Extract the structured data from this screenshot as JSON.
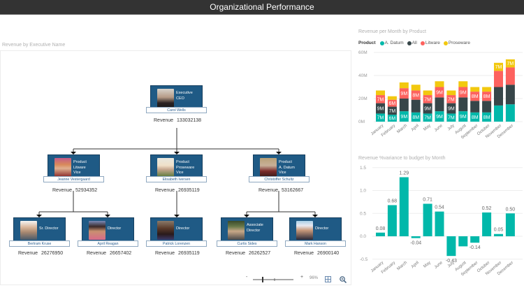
{
  "header": {
    "title": "Organizational Performance"
  },
  "org_chart": {
    "title": "Revenue by Executive Name",
    "revenue_label": "Revenue",
    "nodes": [
      {
        "id": "ceo",
        "role_lines": [
          "Executive",
          "CEO"
        ],
        "name": "Carol Wells",
        "revenue": "133032138"
      },
      {
        "id": "vp1",
        "role_lines": [
          "Product",
          "Litware",
          "Vice President"
        ],
        "name": "Jeanne Vestergaard",
        "revenue": "52934352"
      },
      {
        "id": "vp2",
        "role_lines": [
          "Product",
          "Proseware",
          "Vice President"
        ],
        "name": "Elisabeth Iversen",
        "revenue": "26935119"
      },
      {
        "id": "vp3",
        "role_lines": [
          "Product",
          "A. Datum",
          "Vice President"
        ],
        "name": "Christoffer Schultz",
        "revenue": "53162667"
      },
      {
        "id": "d1",
        "role_lines": [
          "Sr. Director"
        ],
        "name": "Bertram Kruse",
        "revenue": "26276950"
      },
      {
        "id": "d2",
        "role_lines": [
          "Director"
        ],
        "name": "April Reagan",
        "revenue": "26657402"
      },
      {
        "id": "d3",
        "role_lines": [
          "Director"
        ],
        "name": "Patrick Lorenzen",
        "revenue": "26935119"
      },
      {
        "id": "d4",
        "role_lines": [
          "Associate",
          "Director"
        ],
        "name": "Curtis Sides",
        "revenue": "26262527"
      },
      {
        "id": "d5",
        "role_lines": [
          "Director"
        ],
        "name": "Mark Hanson",
        "revenue": "26900140"
      }
    ],
    "toolbar": {
      "zoom_out": "-",
      "zoom_in": "+",
      "zoom_level": "96%",
      "fit_icon": "grid-fit-icon",
      "search_icon": "zoom-search-icon"
    }
  },
  "colors": {
    "node_bg": "#1f5a85",
    "a_datum": "#01b8aa",
    "all": "#374649",
    "litware": "#fd625e",
    "proseware": "#f2c80f",
    "variance": "#01b8aa"
  },
  "chart_data": [
    {
      "type": "bar",
      "stacked": true,
      "title": "Revenue per Month by Product",
      "legend_title": "Product",
      "legend_position": "top",
      "categories": [
        "January",
        "February",
        "March",
        "April",
        "May",
        "June",
        "July",
        "August",
        "September",
        "October",
        "November",
        "December"
      ],
      "series": [
        {
          "name": "A. Datum",
          "color": "#01b8aa",
          "values": [
            7,
            6,
            9,
            8,
            7,
            9,
            7,
            9,
            8,
            8,
            14,
            15
          ],
          "labels": [
            "7M",
            "6M",
            "9M",
            "8M",
            "7M",
            "9M",
            "7M",
            "9M",
            "8M",
            "8M",
            "",
            ""
          ]
        },
        {
          "name": "All",
          "color": "#374649",
          "values": [
            9,
            7,
            11,
            11,
            9,
            12,
            9,
            12,
            10,
            10,
            16,
            17
          ],
          "labels": [
            "9M",
            "7M",
            "",
            "",
            "9M",
            "",
            "9M",
            "",
            "",
            "",
            "",
            ""
          ]
        },
        {
          "name": "Litware",
          "color": "#fd625e",
          "values": [
            7,
            6,
            9,
            8,
            7,
            9,
            7,
            9,
            8,
            8,
            14,
            15
          ],
          "labels": [
            "7M",
            "6M",
            "9M",
            "8M",
            "7M",
            "9M",
            "7M",
            "9M",
            "8M",
            "8M",
            "",
            ""
          ]
        },
        {
          "name": "Proseware",
          "color": "#f2c80f",
          "values": [
            4,
            3,
            5,
            5,
            4,
            5,
            4,
            5,
            4,
            4,
            7,
            7
          ],
          "labels": [
            "",
            "",
            "",
            "",
            "",
            "",
            "",
            "",
            "",
            "",
            "7M",
            "7M"
          ]
        }
      ],
      "ylabel": "",
      "xlabel": "",
      "yticks": [
        "0M",
        "20M",
        "40M",
        "60M"
      ],
      "ylim": [
        0,
        60
      ],
      "grid": true
    },
    {
      "type": "bar",
      "title": "Revenue %variance to budget by Month",
      "categories": [
        "January",
        "February",
        "March",
        "April",
        "May",
        "June",
        "July",
        "August",
        "September",
        "October",
        "November",
        "December"
      ],
      "values": [
        0.08,
        0.68,
        1.29,
        -0.04,
        0.71,
        0.54,
        -0.43,
        -0.22,
        -0.14,
        0.52,
        0.05,
        0.5
      ],
      "labels": [
        "0.08",
        "0.68",
        "1.29",
        "-0.04",
        "0.71",
        "0.54",
        "-0.43",
        "",
        "-0.14",
        "0.52",
        "0.05",
        "0.50"
      ],
      "yticks": [
        "-0.5",
        "0.0",
        "0.5",
        "1.0",
        "1.5"
      ],
      "ylim": [
        -0.5,
        1.5
      ],
      "grid": true,
      "xlabel": "",
      "ylabel": ""
    }
  ]
}
